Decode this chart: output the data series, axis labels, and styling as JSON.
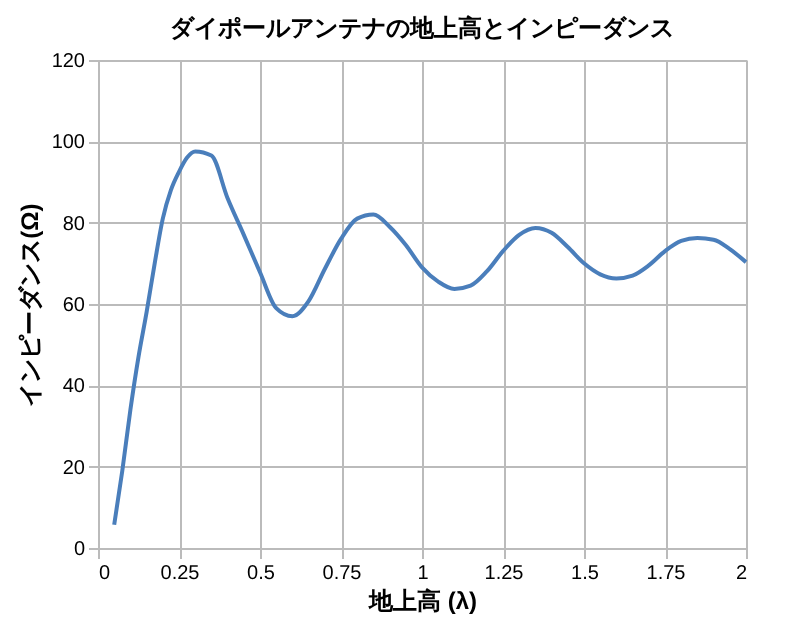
{
  "chart_data": {
    "type": "line",
    "title": "ダイポールアンテナの地上高とインピーダンス",
    "xlabel": "地上高 (λ)",
    "ylabel": "インピーダンス(Ω)",
    "x": [
      0.05,
      0.075,
      0.1,
      0.125,
      0.15,
      0.175,
      0.2,
      0.225,
      0.25,
      0.275,
      0.3,
      0.35,
      0.4,
      0.45,
      0.5,
      0.55,
      0.6,
      0.65,
      0.7,
      0.75,
      0.8,
      0.85,
      0.9,
      0.95,
      1.0,
      1.05,
      1.1,
      1.15,
      1.2,
      1.25,
      1.3,
      1.35,
      1.4,
      1.45,
      1.5,
      1.55,
      1.6,
      1.65,
      1.7,
      1.75,
      1.8,
      1.85,
      1.9,
      1.95,
      2.0
    ],
    "series": [
      {
        "color": "#4a7ebb",
        "values": [
          5.7,
          19,
          34,
          47,
          58,
          70,
          81,
          88,
          92.5,
          96,
          97.5,
          96.5,
          86,
          77,
          67.8,
          59,
          57,
          60.7,
          68.6,
          76,
          81,
          82,
          79,
          74.5,
          69,
          65.5,
          63.7,
          64.5,
          68,
          73,
          77,
          78.7,
          77.5,
          74,
          70,
          67.3,
          66.3,
          67,
          69.5,
          73,
          75.5,
          76.2,
          75.8,
          73.5,
          70.3
        ]
      }
    ],
    "xlim": [
      0,
      2
    ],
    "xticks": [
      0,
      0.25,
      0.5,
      0.75,
      1,
      1.25,
      1.5,
      1.75,
      2
    ],
    "ylim": [
      0,
      120
    ],
    "yticks": [
      0,
      20,
      40,
      60,
      80,
      100,
      120
    ],
    "grid": true,
    "marker": "none",
    "line_style": "solid"
  }
}
